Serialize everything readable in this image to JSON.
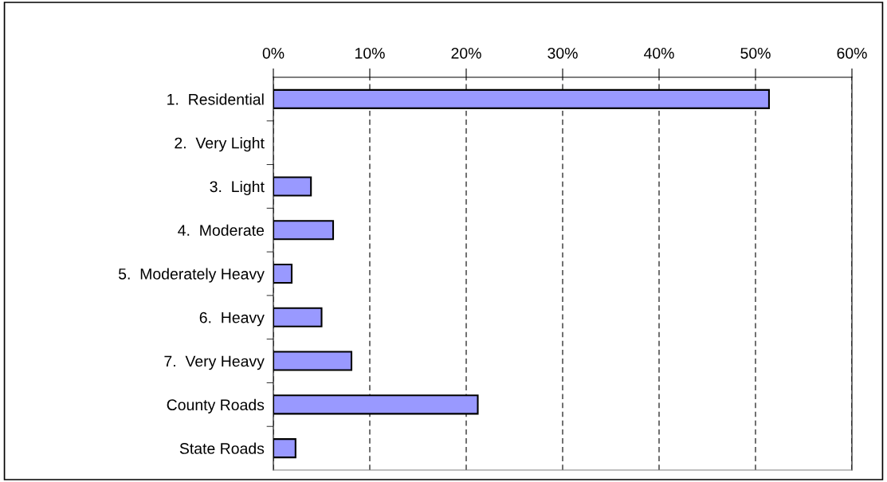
{
  "chart_data": {
    "type": "bar",
    "orientation": "horizontal",
    "categories": [
      "1.  Residential",
      "2.  Very Light",
      "3.  Light",
      "4.  Moderate",
      "5.  Moderately Heavy",
      "6.  Heavy",
      "7.  Very Heavy",
      "County Roads",
      "State Roads"
    ],
    "values": [
      51.4,
      0,
      3.9,
      6.2,
      1.9,
      5.0,
      8.1,
      21.2,
      2.3
    ],
    "color": "#9999ff",
    "xlim": [
      0,
      60
    ],
    "xticks": [
      {
        "value": 0,
        "label": "0%"
      },
      {
        "value": 10,
        "label": "10%"
      },
      {
        "value": 20,
        "label": "20%"
      },
      {
        "value": 30,
        "label": "30%"
      },
      {
        "value": 40,
        "label": "40%"
      },
      {
        "value": 50,
        "label": "50%"
      },
      {
        "value": 60,
        "label": "60%"
      }
    ],
    "grid": "x",
    "legend": false
  }
}
